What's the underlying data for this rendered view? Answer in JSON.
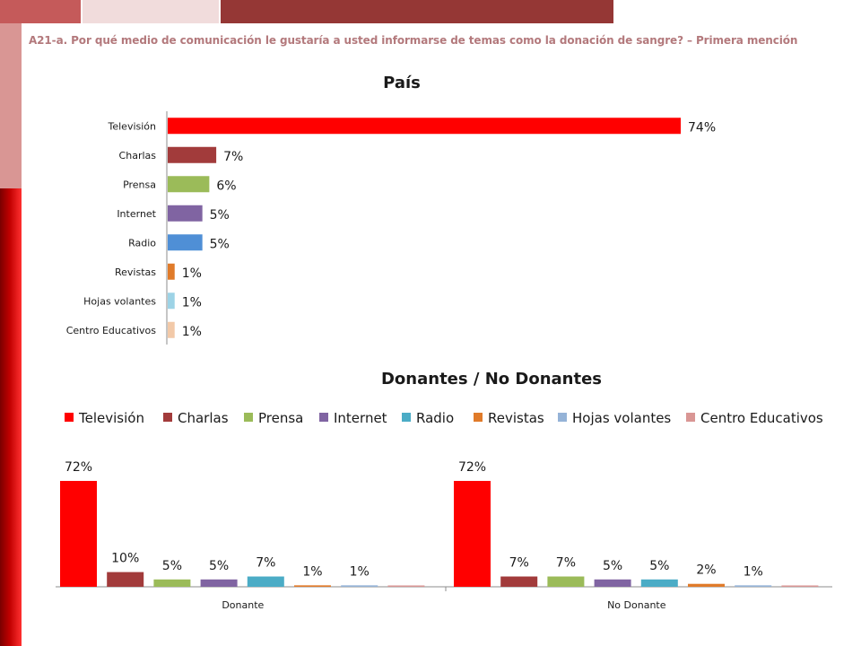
{
  "question": "A21-a. Por qué medio de comunicación le gustaría a usted informarse de temas como la donación de sangre? – Primera mención",
  "colors": {
    "Televisión": "#ff0000",
    "Charlas": "#a23b3b",
    "Prensa": "#9bbb59",
    "Internet": "#8064a2",
    "Radio": "#4bacc6",
    "Radio_pais": "#4f8fd6",
    "Revistas": "#e07b2a",
    "Hojas volantes": "#95b3d7",
    "Centro Educativos": "#d99694",
    "Centro Educativos_pais": "#f2c9a8",
    "Hojas volantes_pais": "#9dd3e6"
  },
  "chart_data": [
    {
      "type": "bar",
      "orientation": "horizontal",
      "title": "País",
      "categories": [
        "Televisión",
        "Charlas",
        "Prensa",
        "Internet",
        "Radio",
        "Revistas",
        "Hojas volantes",
        "Centro Educativos"
      ],
      "values": [
        74,
        7,
        6,
        5,
        5,
        1,
        1,
        1
      ],
      "labels": [
        "74%",
        "7%",
        "6%",
        "5%",
        "5%",
        "1%",
        "1%",
        "1%"
      ],
      "xlim": [
        0,
        100
      ]
    },
    {
      "type": "bar",
      "orientation": "vertical",
      "title": "Donantes / No Donantes",
      "legend_position": "top",
      "categories": [
        "Donante",
        "No Donante"
      ],
      "series": [
        {
          "name": "Televisión",
          "values": [
            72,
            72
          ],
          "labels": [
            "72%",
            "72%"
          ]
        },
        {
          "name": "Charlas",
          "values": [
            10,
            7
          ],
          "labels": [
            "10%",
            "7%"
          ]
        },
        {
          "name": "Prensa",
          "values": [
            5,
            7
          ],
          "labels": [
            "5%",
            "7%"
          ]
        },
        {
          "name": "Internet",
          "values": [
            5,
            5
          ],
          "labels": [
            "5%",
            "5%"
          ]
        },
        {
          "name": "Radio",
          "values": [
            7,
            5
          ],
          "labels": [
            "7%",
            "5%"
          ]
        },
        {
          "name": "Revistas",
          "values": [
            1,
            2
          ],
          "labels": [
            "1%",
            "2%"
          ]
        },
        {
          "name": "Hojas volantes",
          "values": [
            1,
            1
          ],
          "labels": [
            "1%",
            "1%"
          ]
        },
        {
          "name": "Centro Educativos",
          "values": [
            0,
            0
          ],
          "labels": [
            "",
            ""
          ]
        }
      ],
      "ylim": [
        0,
        72
      ]
    }
  ]
}
